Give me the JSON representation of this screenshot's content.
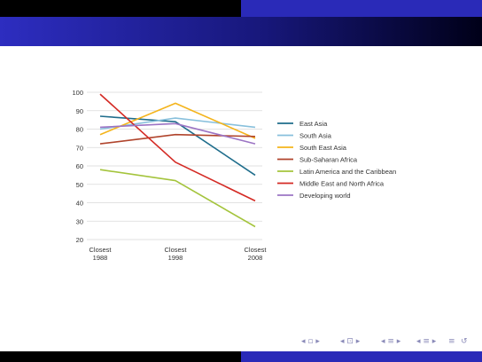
{
  "chart_data": {
    "type": "line",
    "x": [
      "Closest 1988",
      "Closest 1998",
      "Closest 2008"
    ],
    "x_tick_lines": [
      [
        "Closest",
        "1988"
      ],
      [
        "Closest",
        "1998"
      ],
      [
        "Closest",
        "2008"
      ]
    ],
    "ylim": [
      20,
      100
    ],
    "yticks": [
      20,
      30,
      40,
      50,
      60,
      70,
      80,
      90,
      100
    ],
    "grid": true,
    "legend_position": "right",
    "series": [
      {
        "name": "East Asia",
        "color": "#1f6d8c",
        "values": [
          87,
          84,
          55
        ]
      },
      {
        "name": "South Asia",
        "color": "#88c0dc",
        "values": [
          80,
          86,
          81
        ]
      },
      {
        "name": "South East Asia",
        "color": "#f4b41c",
        "values": [
          77,
          94,
          75
        ]
      },
      {
        "name": "Sub-Saharan Africa",
        "color": "#b0442c",
        "values": [
          72,
          77,
          76
        ]
      },
      {
        "name": "Latin America and the Caribbean",
        "color": "#a4c43c",
        "values": [
          58,
          52,
          27
        ]
      },
      {
        "name": "Middle East and North Africa",
        "color": "#d42a24",
        "values": [
          99,
          62,
          41
        ]
      },
      {
        "name": "Developing world",
        "color": "#9c74c4",
        "values": [
          81,
          83,
          72
        ]
      }
    ]
  },
  "nav_icons": [
    "nav-first-icon",
    "nav-frame-prev-icon",
    "nav-section-icon",
    "nav-subsection-icon",
    "nav-align-icon",
    "nav-search-icon"
  ]
}
